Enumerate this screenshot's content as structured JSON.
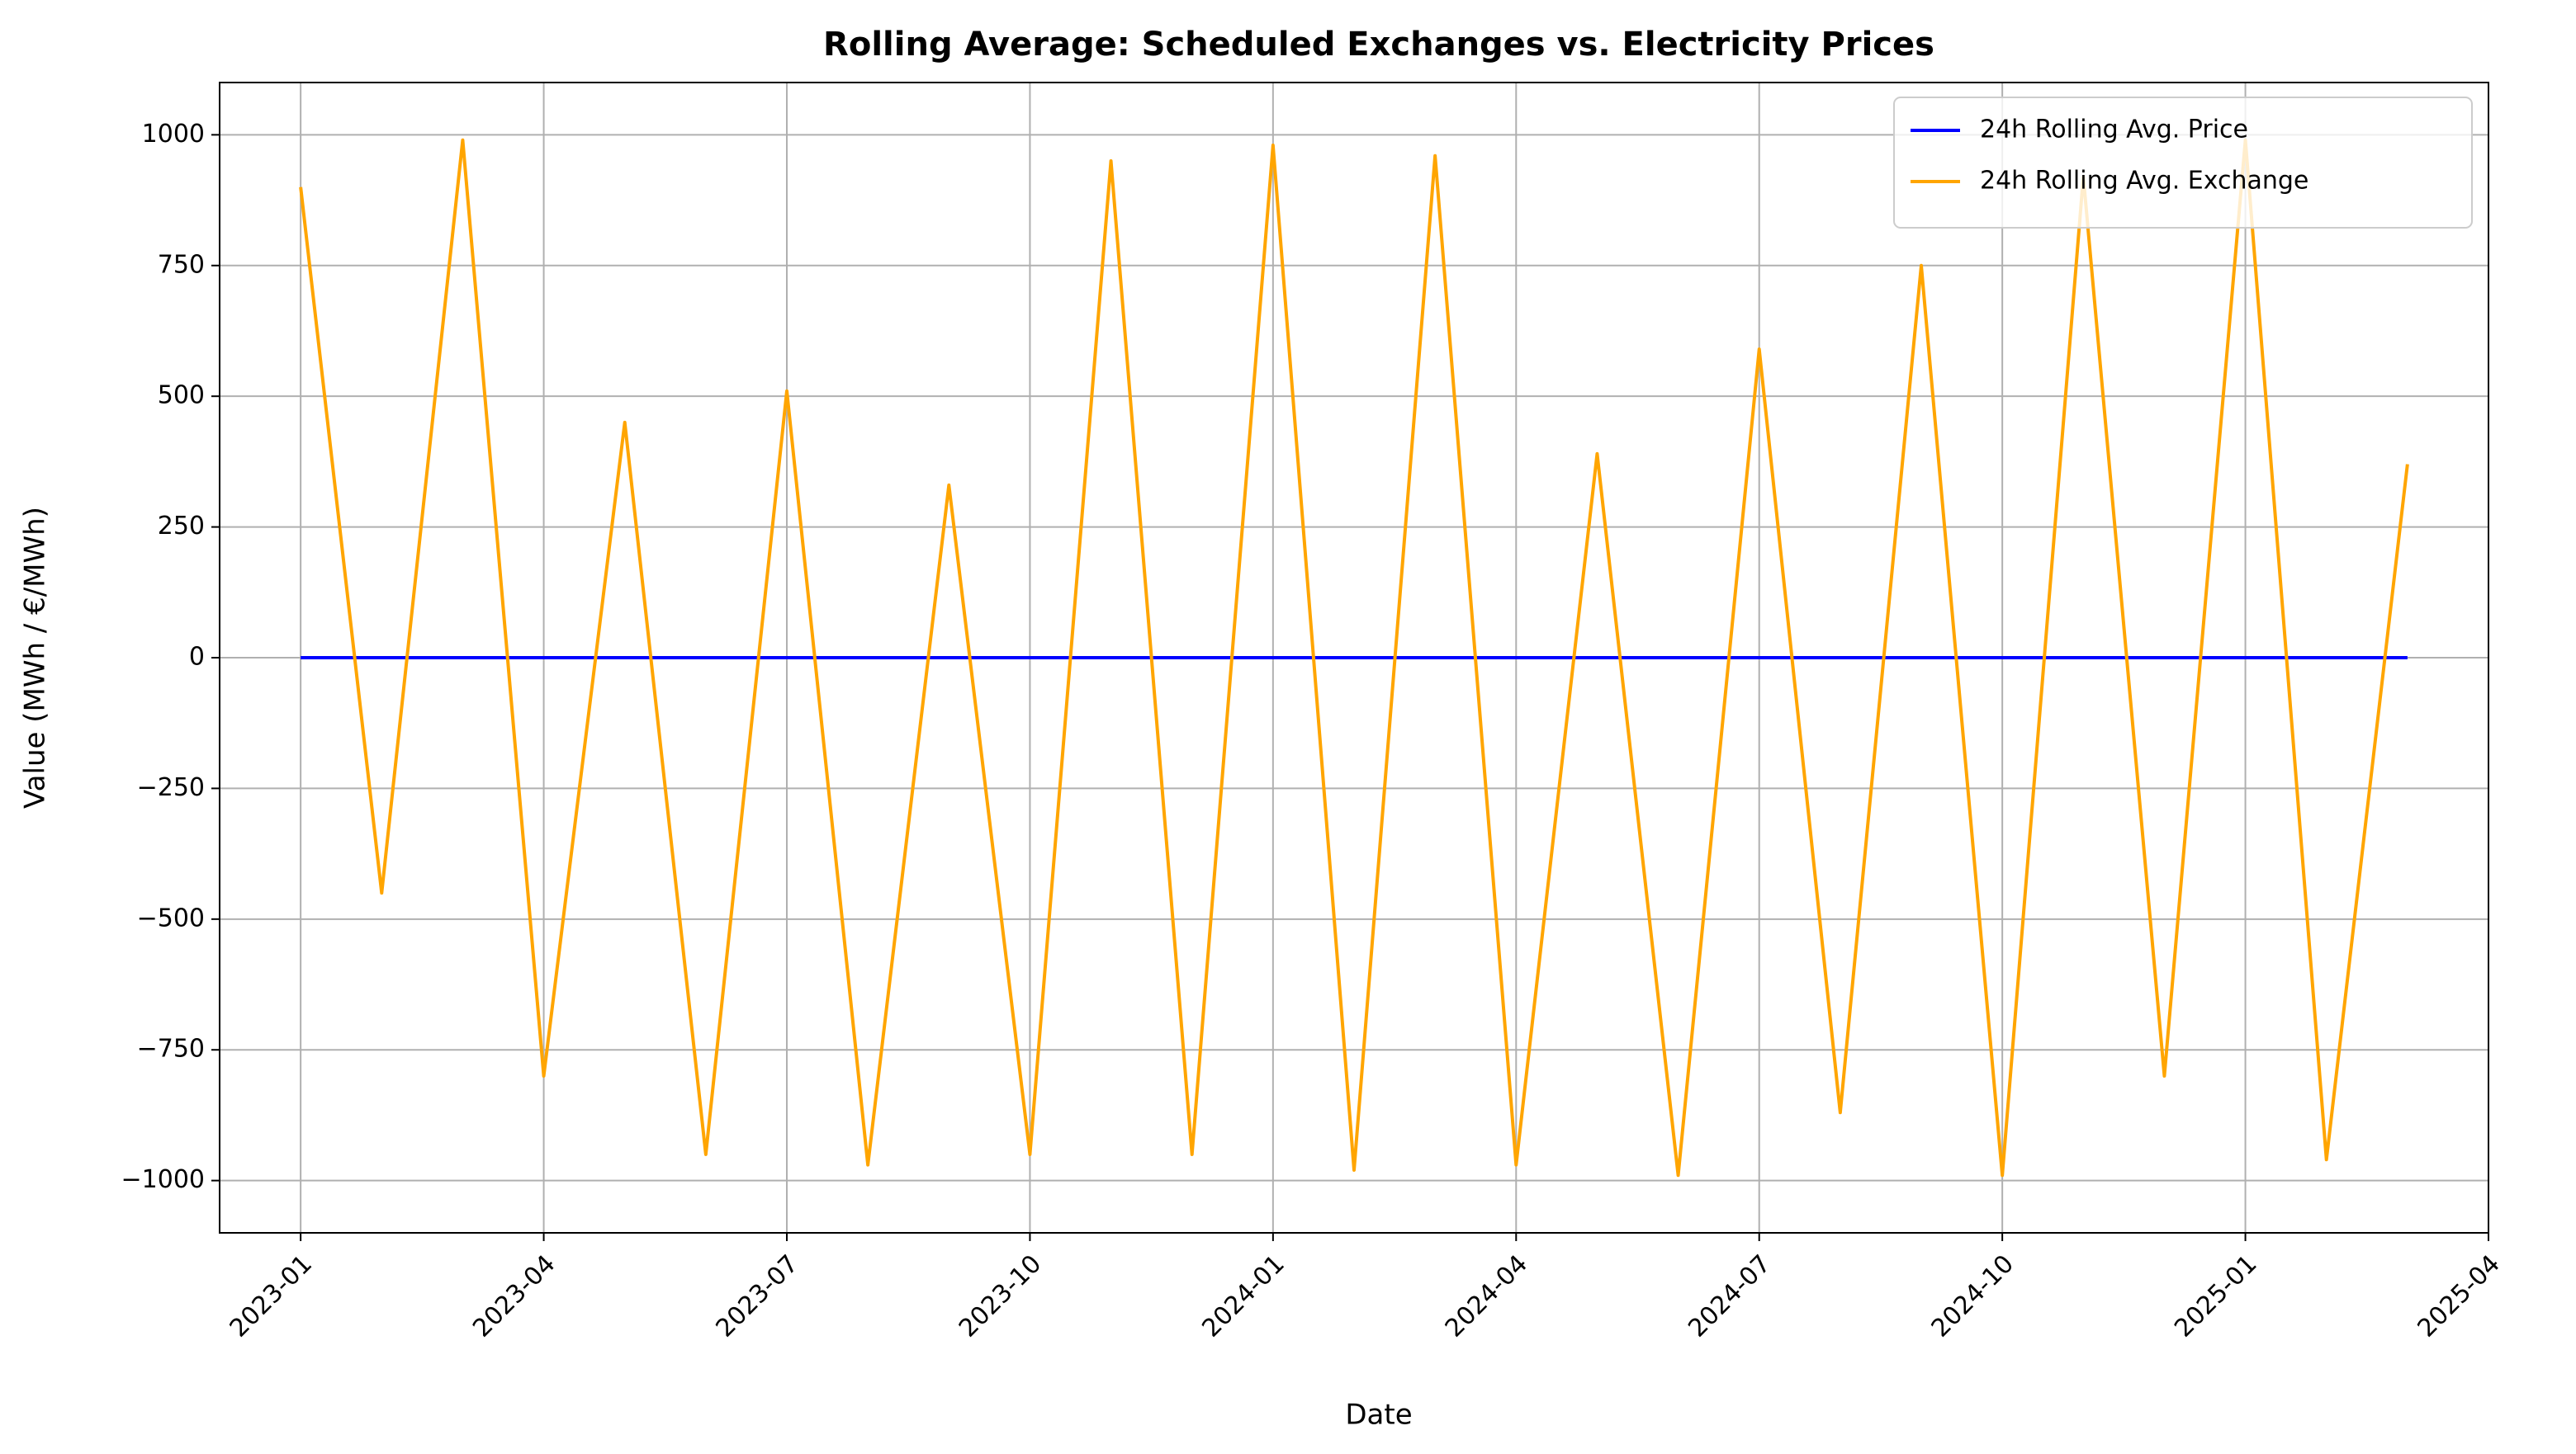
{
  "chart_data": {
    "type": "line",
    "title": "Rolling Average: Scheduled Exchanges vs. Electricity Prices",
    "x_label": "Date",
    "y_label": "Value (MWh / €/MWh)",
    "x": [
      "2023-01",
      "2023-02",
      "2023-03",
      "2023-04",
      "2023-05",
      "2023-06",
      "2023-07",
      "2023-08",
      "2023-09",
      "2023-10",
      "2023-11",
      "2023-12",
      "2024-01",
      "2024-02",
      "2024-03",
      "2024-04",
      "2024-05",
      "2024-06",
      "2024-07",
      "2024-08",
      "2024-09",
      "2024-10",
      "2024-11",
      "2024-12",
      "2025-01",
      "2025-02",
      "2025-03"
    ],
    "series": [
      {
        "name": "24h Rolling Avg. Price",
        "color": "#0000ff",
        "values": [
          0,
          0,
          0,
          0,
          0,
          0,
          0,
          0,
          0,
          0,
          0,
          0,
          0,
          0,
          0,
          0,
          0,
          0,
          0,
          0,
          0,
          0,
          0,
          0,
          0,
          0,
          0
        ]
      },
      {
        "name": "24h Rolling Avg. Exchange",
        "color": "#ffa500",
        "values": [
          900,
          -450,
          990,
          -800,
          450,
          -950,
          510,
          -970,
          330,
          -950,
          950,
          -950,
          980,
          -980,
          960,
          -970,
          390,
          -990,
          590,
          -870,
          750,
          -990,
          920,
          -800,
          990,
          -960,
          370
        ]
      }
    ],
    "xlim": [
      "2022-12",
      "2025-04"
    ],
    "xticks": [
      "2023-01",
      "2023-04",
      "2023-07",
      "2023-10",
      "2024-01",
      "2024-04",
      "2024-07",
      "2024-10",
      "2025-01",
      "2025-04"
    ],
    "ylim": [
      -1100,
      1100
    ],
    "yticks": [
      {
        "value": -1000,
        "label": "−1000"
      },
      {
        "value": -750,
        "label": "−750"
      },
      {
        "value": -500,
        "label": "−500"
      },
      {
        "value": -250,
        "label": "−250"
      },
      0,
      250,
      500,
      750,
      1000
    ],
    "grid": true,
    "legend": "upper right"
  }
}
